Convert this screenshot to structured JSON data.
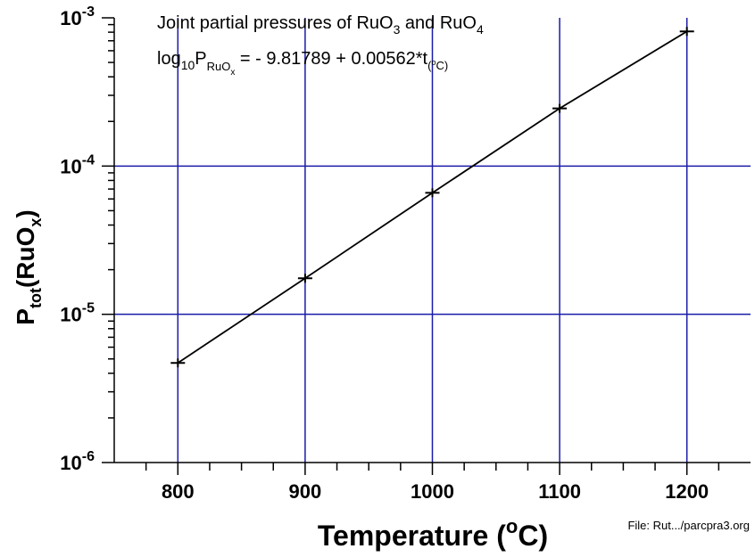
{
  "chart_data": {
    "type": "line",
    "x_scale": "linear",
    "y_scale": "log",
    "xlim": [
      750,
      1250
    ],
    "ylim": [
      1e-06,
      0.001
    ],
    "x_ticks": [
      800,
      900,
      1000,
      1100,
      1200
    ],
    "x_tick_labels": [
      "800",
      "900",
      "1000",
      "1100",
      "1200"
    ],
    "y_ticks": [
      1e-06,
      1e-05,
      0.0001,
      0.001
    ],
    "y_tick_labels": [
      {
        "base": "10",
        "exp": "-6"
      },
      {
        "base": "10",
        "exp": "-5"
      },
      {
        "base": "10",
        "exp": "-4"
      },
      {
        "base": "10",
        "exp": "-3"
      }
    ],
    "grid": "major",
    "xlabel": {
      "main": "Temperature  (",
      "sup": "o",
      "tail": "C)"
    },
    "ylabel": {
      "main": "P",
      "sub1": "tot",
      "mid": "(RuO",
      "sub2": "x",
      "tail": ")"
    },
    "points": [
      {
        "x": 800,
        "y": 4.7e-06
      },
      {
        "x": 900,
        "y": 1.75e-05
      },
      {
        "x": 1000,
        "y": 6.6e-05
      },
      {
        "x": 1100,
        "y": 0.000245
      },
      {
        "x": 1200,
        "y": 0.00081
      }
    ],
    "annotations": {
      "title_line1": {
        "text": "Joint partial pressures of RuO",
        "sub_a": "3",
        "mid": " and RuO",
        "sub_b": "4"
      },
      "equation": {
        "pre": "log",
        "pre_sub": "10",
        "p": "P",
        "p_sub": "RuO",
        "p_sub_sub": "x",
        "body": " = - 9.81789 + 0.00562*t",
        "t_sub": "(",
        "t_sub_sup": "o",
        "t_sub_tail": "C)"
      }
    },
    "colors": {
      "grid": "#1a1aaa",
      "line": "#000000",
      "axis": "#000000"
    }
  },
  "footer": {
    "file_note": "File: Rut.../parcpra3.org"
  }
}
